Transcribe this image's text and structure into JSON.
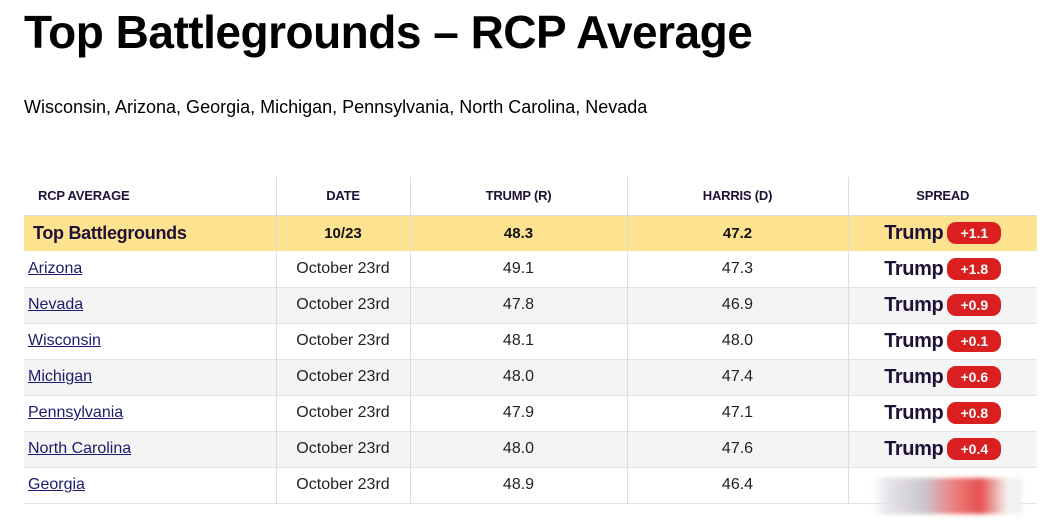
{
  "title": "Top Battlegrounds – RCP Average",
  "subtitle": "Wisconsin, Arizona, Georgia, Michigan, Pennsylvania, North Carolina, Nevada",
  "columns": {
    "name": "RCP AVERAGE",
    "date": "DATE",
    "trump": "TRUMP (R)",
    "harris": "HARRIS (D)",
    "spread": "SPREAD"
  },
  "average_row": {
    "name": "Top Battlegrounds",
    "date": "10/23",
    "trump": "48.3",
    "harris": "47.2",
    "leader": "Trump",
    "spread": "+1.1"
  },
  "rows": [
    {
      "name": "Arizona",
      "date": "October 23rd",
      "trump": "49.1",
      "harris": "47.3",
      "leader": "Trump",
      "spread": "+1.8"
    },
    {
      "name": "Nevada",
      "date": "October 23rd",
      "trump": "47.8",
      "harris": "46.9",
      "leader": "Trump",
      "spread": "+0.9"
    },
    {
      "name": "Wisconsin",
      "date": "October 23rd",
      "trump": "48.1",
      "harris": "48.0",
      "leader": "Trump",
      "spread": "+0.1"
    },
    {
      "name": "Michigan",
      "date": "October 23rd",
      "trump": "48.0",
      "harris": "47.4",
      "leader": "Trump",
      "spread": "+0.6"
    },
    {
      "name": "Pennsylvania",
      "date": "October 23rd",
      "trump": "47.9",
      "harris": "47.1",
      "leader": "Trump",
      "spread": "+0.8"
    },
    {
      "name": "North Carolina",
      "date": "October 23rd",
      "trump": "48.0",
      "harris": "47.6",
      "leader": "Trump",
      "spread": "+0.4"
    },
    {
      "name": "Georgia",
      "date": "October 23rd",
      "trump": "48.9",
      "harris": "46.4",
      "leader": "",
      "spread": ""
    }
  ],
  "colors": {
    "average_row_bg": "#fde290",
    "badge_bg": "#d91f1f",
    "header_text": "#1e1236",
    "link": "#1e1a6e"
  }
}
